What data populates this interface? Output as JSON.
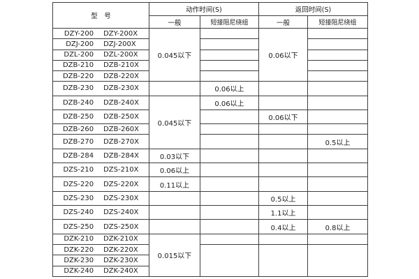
{
  "colors": {
    "background": "#ffffff",
    "border": "#3d3d3d",
    "text": "#1c1c1c"
  },
  "table": {
    "header": {
      "model": "型　号",
      "action_time": "动作时间(S)",
      "return_time": "返回时间(S)",
      "general": "一般",
      "damping": "短接阻尼绕组"
    },
    "rows": [
      {
        "model": "DZY-200",
        "model_x": "DZY-200X"
      },
      {
        "model": "DZJ-200",
        "model_x": "DZJ-200X"
      },
      {
        "model": "DZL-200",
        "model_x": "DZL-200X"
      },
      {
        "model": "DZB-210",
        "model_x": "DZB-210X"
      },
      {
        "model": "DZB-220",
        "model_x": "DZB-220X"
      },
      {
        "model": "DZB-230",
        "model_x": "DZB-230X"
      },
      {
        "model": "DZB-240",
        "model_x": "DZB-240X"
      },
      {
        "model": "DZB-250",
        "model_x": "DZB-250X"
      },
      {
        "model": "DZB-260",
        "model_x": "DZB-260X"
      },
      {
        "model": "DZB-270",
        "model_x": "DZB-270X"
      },
      {
        "model": "DZB-284",
        "model_x": "DZB-284X"
      },
      {
        "model": "DZS-210",
        "model_x": "DZS-210X"
      },
      {
        "model": "DZS-220",
        "model_x": "DZS-220X"
      },
      {
        "model": "DZS-230",
        "model_x": "DZS-230X"
      },
      {
        "model": "DZS-240",
        "model_x": "DZS-240X"
      },
      {
        "model": "DZS-250",
        "model_x": "DZS-250X"
      },
      {
        "model": "DZK-210",
        "model_x": "DZK-210X"
      },
      {
        "model": "DZK-220",
        "model_x": "DZK-220X"
      },
      {
        "model": "DZK-230",
        "model_x": "DZK-230X"
      },
      {
        "model": "DZK-240",
        "model_x": "DZK-240X"
      }
    ],
    "columns": {
      "action_general": [
        [
          5,
          "0.045以下"
        ],
        [
          1,
          ""
        ],
        [
          4,
          "0.045以下"
        ],
        [
          1,
          "0.03以下"
        ],
        [
          1,
          "0.06以上"
        ],
        [
          1,
          "0.11以上"
        ],
        [
          1,
          ""
        ],
        [
          1,
          ""
        ],
        [
          1,
          ""
        ],
        [
          4,
          "0.015以下"
        ]
      ],
      "action_damping": [
        [
          1,
          ""
        ],
        [
          1,
          ""
        ],
        [
          1,
          ""
        ],
        [
          1,
          ""
        ],
        [
          1,
          ""
        ],
        [
          1,
          "0.06以上"
        ],
        [
          1,
          "0.06以上"
        ],
        [
          1,
          ""
        ],
        [
          1,
          ""
        ],
        [
          1,
          ""
        ],
        [
          1,
          ""
        ],
        [
          1,
          ""
        ],
        [
          1,
          ""
        ],
        [
          1,
          ""
        ],
        [
          1,
          ""
        ],
        [
          1,
          ""
        ],
        [
          1,
          ""
        ],
        [
          3,
          ""
        ]
      ],
      "return_general": [
        [
          5,
          "0.06以下"
        ],
        [
          1,
          ""
        ],
        [
          1,
          ""
        ],
        [
          1,
          "0.06以下"
        ],
        [
          1,
          ""
        ],
        [
          1,
          ""
        ],
        [
          1,
          ""
        ],
        [
          1,
          ""
        ],
        [
          1,
          ""
        ],
        [
          1,
          "0.5以上"
        ],
        [
          1,
          "1.1以上"
        ],
        [
          1,
          "0.4以上"
        ],
        [
          1,
          ""
        ],
        [
          3,
          ""
        ]
      ],
      "return_damping": [
        [
          1,
          ""
        ],
        [
          1,
          ""
        ],
        [
          1,
          ""
        ],
        [
          1,
          ""
        ],
        [
          1,
          ""
        ],
        [
          1,
          ""
        ],
        [
          1,
          ""
        ],
        [
          1,
          ""
        ],
        [
          1,
          ""
        ],
        [
          1,
          "0.5以上"
        ],
        [
          1,
          ""
        ],
        [
          1,
          ""
        ],
        [
          1,
          ""
        ],
        [
          1,
          ""
        ],
        [
          1,
          ""
        ],
        [
          1,
          "0.8以上"
        ],
        [
          1,
          ""
        ],
        [
          3,
          ""
        ]
      ]
    }
  }
}
